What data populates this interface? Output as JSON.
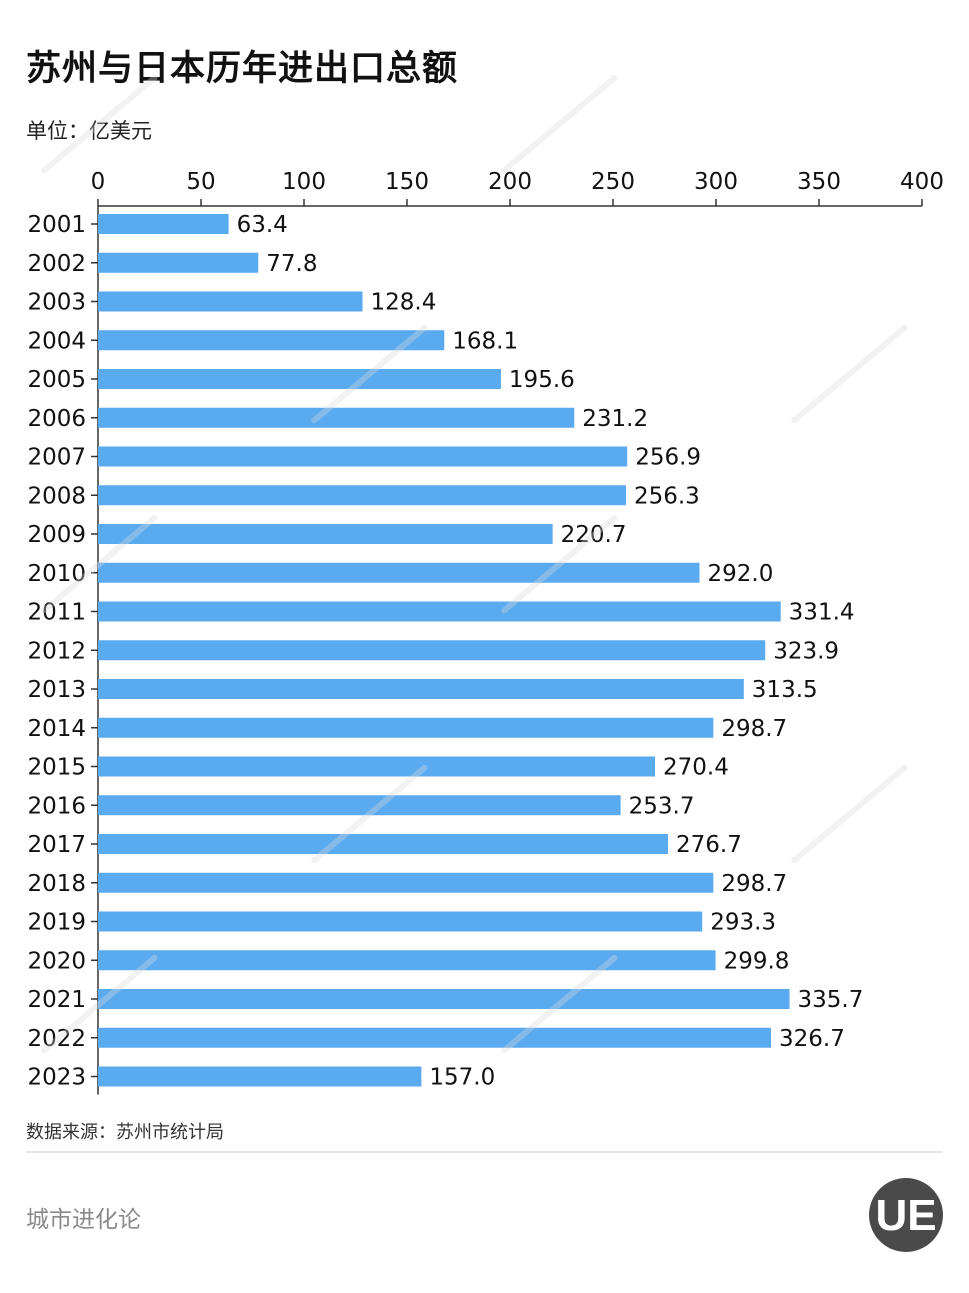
{
  "title": "苏州与日本历年进出口总额",
  "unit": "单位：亿美元",
  "source": "数据来源：苏州市统计局",
  "brand": "城市进化论",
  "logo_letters": "UE",
  "colors": {
    "bar": "#5aaaf0",
    "axis": "#333333",
    "text": "#111111"
  },
  "chart_data": {
    "type": "bar",
    "orientation": "horizontal",
    "categories": [
      "2001",
      "2002",
      "2003",
      "2004",
      "2005",
      "2006",
      "2007",
      "2008",
      "2009",
      "2010",
      "2011",
      "2012",
      "2013",
      "2014",
      "2015",
      "2016",
      "2017",
      "2018",
      "2019",
      "2020",
      "2021",
      "2022",
      "2023"
    ],
    "values": [
      63.4,
      77.8,
      128.4,
      168.1,
      195.6,
      231.2,
      256.9,
      256.3,
      220.7,
      292.0,
      331.4,
      323.9,
      313.5,
      298.7,
      270.4,
      253.7,
      276.7,
      298.7,
      293.3,
      299.8,
      335.7,
      326.7,
      157.0
    ],
    "value_labels": [
      "63.4",
      "77.8",
      "128.4",
      "168.1",
      "195.6",
      "231.2",
      "256.9",
      "256.3",
      "220.7",
      "292.0",
      "331.4",
      "323.9",
      "313.5",
      "298.7",
      "270.4",
      "253.7",
      "276.7",
      "298.7",
      "293.3",
      "299.8",
      "335.7",
      "326.7",
      "157.0"
    ],
    "xticks": [
      0,
      50,
      100,
      150,
      200,
      250,
      300,
      350,
      400
    ],
    "xlim": [
      0,
      400
    ],
    "axis_position": "top",
    "grid": false,
    "legend": "none"
  }
}
